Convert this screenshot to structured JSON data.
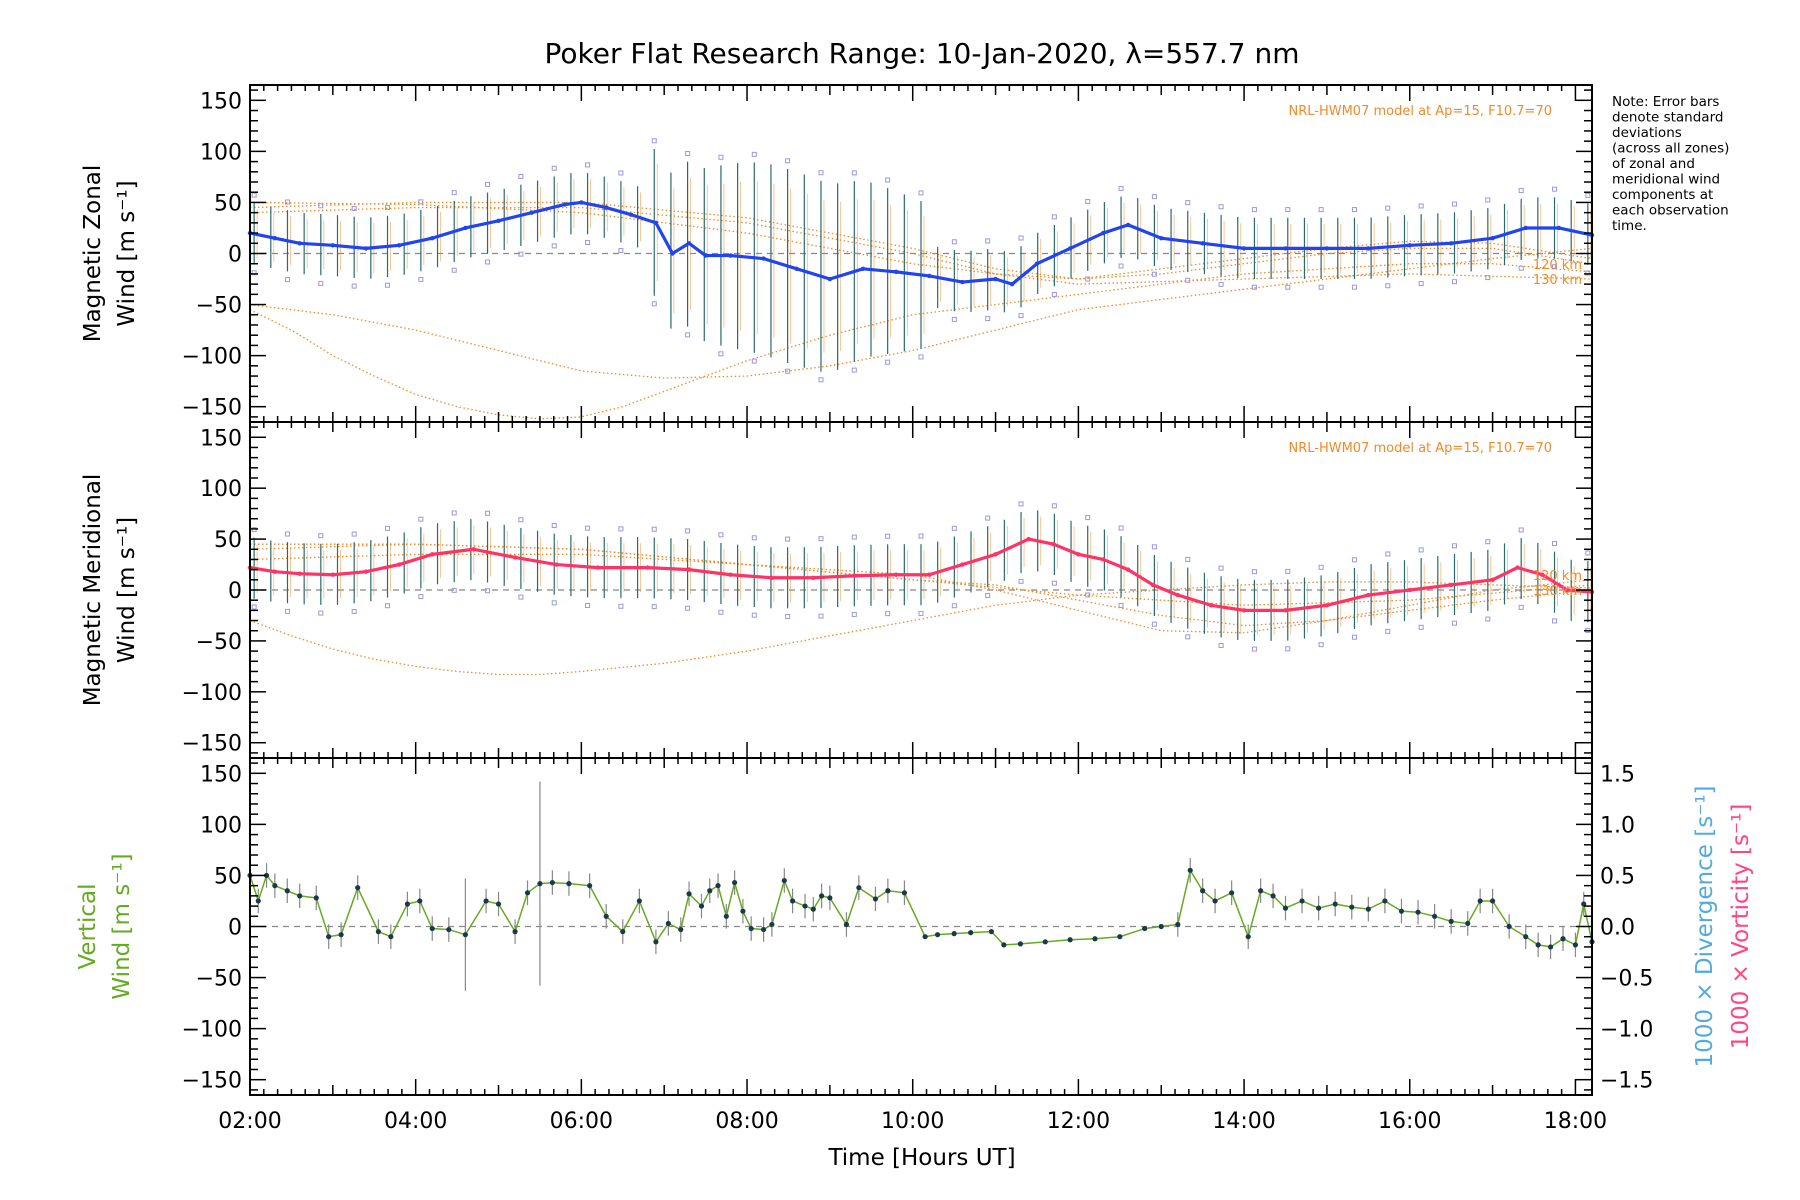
{
  "title": "Poker Flat Research Range: 10-Jan-2020, λ=557.7 nm",
  "note": [
    "Note: Error bars",
    "denote standard",
    "deviations",
    "(across all zones)",
    "of zonal and",
    "meridional wind",
    "components at",
    "each observation",
    "time."
  ],
  "colors": {
    "zonal": "#2244ee",
    "zonal_light": "#4aa8e8",
    "meridional": "#ff3366",
    "vertical": "#66aa22",
    "divergence": "#55aadd",
    "vorticity": "#ff4488",
    "model": "#f08a2a",
    "zone_box": "#9999dd",
    "errbar": "#2a6a6a"
  },
  "chart_data": [
    {
      "type": "line",
      "panel": "zonal",
      "ylabel": "Magnetic Zonal",
      "ylabel2": "Wind [m s⁻¹]",
      "model_label": "NRL-HWM07 model at Ap=15, F10.7=70",
      "model_curve_labels": [
        "120 km",
        "130 km"
      ],
      "xlim": [
        2,
        18.2
      ],
      "ylim": [
        -165,
        165
      ],
      "yticks": [
        150,
        100,
        50,
        0,
        -50,
        -100,
        -150
      ],
      "series": [
        {
          "x": [
            2.0,
            2.3,
            2.6,
            3.0,
            3.4,
            3.8,
            4.2,
            4.6,
            5.0,
            5.4,
            5.8,
            6.0,
            6.3,
            6.6,
            6.9,
            7.1,
            7.3,
            7.5,
            7.8,
            8.2,
            8.6,
            9.0,
            9.4,
            9.8,
            10.2,
            10.6,
            11.0,
            11.2,
            11.5,
            11.9,
            12.3,
            12.6,
            13.0,
            13.5,
            14.0,
            14.5,
            15.0,
            15.5,
            16.0,
            16.5,
            17.0,
            17.4,
            17.8,
            18.2
          ],
          "y": [
            20,
            15,
            10,
            8,
            5,
            8,
            15,
            25,
            32,
            40,
            48,
            50,
            45,
            38,
            30,
            0,
            10,
            -2,
            -2,
            -5,
            -15,
            -25,
            -15,
            -18,
            -22,
            -28,
            -25,
            -30,
            -10,
            5,
            20,
            28,
            15,
            10,
            5,
            5,
            5,
            5,
            8,
            10,
            15,
            25,
            25,
            18
          ]
        }
      ],
      "model_curves": [
        {
          "x": [
            2,
            3,
            4,
            5,
            5.5,
            6,
            7,
            8,
            9,
            10,
            11,
            12,
            13,
            14,
            15,
            16,
            17,
            18.2
          ],
          "y": [
            -50,
            -60,
            -75,
            -95,
            -105,
            -115,
            -122,
            -120,
            -110,
            -95,
            -75,
            -55,
            -45,
            -35,
            -25,
            -15,
            -5,
            5
          ]
        },
        {
          "x": [
            2,
            2.5,
            3,
            3.5,
            4,
            4.5,
            5,
            5.5,
            6,
            6.5,
            7,
            8,
            9,
            10,
            11,
            12,
            13,
            14,
            15,
            16,
            17,
            18.2
          ],
          "y": [
            -55,
            -75,
            -100,
            -120,
            -138,
            -150,
            -158,
            -162,
            -160,
            -150,
            -135,
            -105,
            -80,
            -60,
            -50,
            -40,
            -30,
            -20,
            -15,
            -10,
            -10,
            -18
          ]
        },
        {
          "x": [
            2,
            4,
            6,
            8,
            10,
            11,
            12,
            13,
            14,
            15,
            16,
            17,
            18.2
          ],
          "y": [
            40,
            45,
            45,
            30,
            0,
            -20,
            -25,
            -15,
            -5,
            5,
            12,
            10,
            -5
          ]
        },
        {
          "x": [
            2,
            4,
            6,
            8,
            10,
            11,
            12,
            13,
            14,
            15,
            16,
            17,
            18.2
          ],
          "y": [
            45,
            50,
            50,
            35,
            5,
            -15,
            -25,
            -20,
            -10,
            0,
            5,
            5,
            -10
          ]
        },
        {
          "x": [
            2,
            4,
            6,
            8,
            10,
            12,
            14,
            16,
            18.2
          ],
          "y": [
            50,
            48,
            40,
            20,
            -10,
            -30,
            -25,
            -20,
            -25
          ]
        }
      ]
    },
    {
      "type": "line",
      "panel": "meridional",
      "ylabel": "Magnetic Meridional",
      "ylabel2": "Wind [m s⁻¹]",
      "model_label": "NRL-HWM07 model at Ap=15, F10.7=70",
      "model_curve_labels": [
        "120 km",
        "130 km"
      ],
      "xlim": [
        2,
        18.2
      ],
      "ylim": [
        -165,
        165
      ],
      "yticks": [
        150,
        100,
        50,
        0,
        -50,
        -100,
        -150
      ],
      "series": [
        {
          "x": [
            2.0,
            2.3,
            2.6,
            3.0,
            3.4,
            3.8,
            4.2,
            4.7,
            5.2,
            5.7,
            6.2,
            6.8,
            7.3,
            7.8,
            8.3,
            8.8,
            9.3,
            9.8,
            10.2,
            10.6,
            11.0,
            11.4,
            11.7,
            12.0,
            12.3,
            12.6,
            12.9,
            13.2,
            13.6,
            14.0,
            14.5,
            15.0,
            15.5,
            16.0,
            16.5,
            17.0,
            17.3,
            17.6,
            17.9,
            18.2
          ],
          "y": [
            22,
            18,
            16,
            15,
            18,
            25,
            35,
            40,
            32,
            25,
            22,
            22,
            20,
            15,
            12,
            12,
            14,
            15,
            15,
            25,
            35,
            50,
            45,
            35,
            30,
            20,
            5,
            -5,
            -15,
            -20,
            -20,
            -15,
            -5,
            0,
            5,
            10,
            22,
            15,
            0,
            -2
          ]
        }
      ],
      "model_curves": [
        {
          "x": [
            2,
            2.5,
            3,
            3.5,
            4,
            4.5,
            5,
            5.5,
            6,
            7,
            8,
            9,
            10,
            11,
            12,
            13,
            14,
            15,
            16,
            17,
            18.2
          ],
          "y": [
            -30,
            -45,
            -58,
            -68,
            -75,
            -80,
            -83,
            -83,
            -80,
            -72,
            -60,
            -45,
            -30,
            -15,
            -5,
            0,
            5,
            8,
            8,
            5,
            2
          ]
        },
        {
          "x": [
            2,
            4,
            6,
            8,
            10,
            11,
            12,
            13,
            14,
            15,
            16,
            17,
            18.2
          ],
          "y": [
            40,
            45,
            40,
            25,
            10,
            5,
            -10,
            -25,
            -35,
            -30,
            -20,
            -10,
            0
          ]
        },
        {
          "x": [
            2,
            4,
            6,
            8,
            10,
            11,
            12,
            13,
            14,
            15,
            16,
            17,
            18.2
          ],
          "y": [
            30,
            35,
            35,
            25,
            15,
            0,
            -20,
            -40,
            -42,
            -30,
            -15,
            0,
            10
          ]
        },
        {
          "x": [
            2,
            4,
            6,
            8,
            10,
            12,
            14,
            16,
            18.2
          ],
          "y": [
            45,
            45,
            40,
            25,
            10,
            -5,
            -15,
            -10,
            5
          ]
        }
      ]
    },
    {
      "type": "line",
      "panel": "vertical",
      "ylabel": "Vertical",
      "ylabel2": "Wind [m s⁻¹]",
      "xlabel": "Time [Hours UT]",
      "xlim": [
        2,
        18.2
      ],
      "ylim": [
        -165,
        165
      ],
      "yticks": [
        150,
        100,
        50,
        0,
        -50,
        -100,
        -150
      ],
      "y2label_divergence": "1000 × Divergence [s⁻¹]",
      "y2label_vorticity": "1000 × Vorticity [s⁻¹]",
      "y2ticks": [
        "1.5",
        "1.0",
        "0.5",
        "0.0",
        "−0.5",
        "−1.0",
        "−1.5"
      ],
      "y2lim": [
        -1.5,
        1.5
      ],
      "xticks": [
        "02:00",
        "04:00",
        "06:00",
        "08:00",
        "10:00",
        "12:00",
        "14:00",
        "16:00",
        "18:00"
      ],
      "xtick_values": [
        2,
        4,
        6,
        8,
        10,
        12,
        14,
        16,
        18
      ],
      "series": [
        {
          "x": [
            2.0,
            2.1,
            2.2,
            2.3,
            2.45,
            2.6,
            2.8,
            2.95,
            3.1,
            3.3,
            3.55,
            3.7,
            3.9,
            4.05,
            4.2,
            4.4,
            4.6,
            4.85,
            5.0,
            5.2,
            5.35,
            5.5,
            5.65,
            5.85,
            6.1,
            6.3,
            6.5,
            6.7,
            6.9,
            7.05,
            7.2,
            7.3,
            7.45,
            7.55,
            7.65,
            7.75,
            7.85,
            7.95,
            8.05,
            8.2,
            8.3,
            8.45,
            8.55,
            8.7,
            8.8,
            8.9,
            9.0,
            9.2,
            9.35,
            9.55,
            9.7,
            9.9,
            10.15,
            10.3,
            10.5,
            10.7,
            10.95,
            11.1,
            11.3,
            11.6,
            11.9,
            12.2,
            12.5,
            12.8,
            13.0,
            13.2,
            13.35,
            13.5,
            13.65,
            13.85,
            14.05,
            14.2,
            14.35,
            14.5,
            14.7,
            14.9,
            15.1,
            15.3,
            15.5,
            15.7,
            15.9,
            16.1,
            16.3,
            16.5,
            16.7,
            16.85,
            17.0,
            17.2,
            17.4,
            17.55,
            17.7,
            17.85,
            18.0,
            18.1,
            18.2
          ],
          "y": [
            50,
            25,
            50,
            40,
            35,
            30,
            28,
            -10,
            -8,
            38,
            -5,
            -10,
            22,
            25,
            -2,
            -3,
            -8,
            25,
            22,
            -5,
            33,
            42,
            43,
            42,
            40,
            10,
            -5,
            25,
            -15,
            3,
            -3,
            32,
            20,
            35,
            40,
            10,
            43,
            15,
            -2,
            -3,
            2,
            45,
            25,
            20,
            17,
            30,
            28,
            2,
            38,
            27,
            35,
            33,
            -10,
            -8,
            -7,
            -6,
            -5,
            -18,
            -17,
            -15,
            -13,
            -12,
            -10,
            -2,
            0,
            2,
            55,
            35,
            25,
            33,
            -10,
            35,
            30,
            18,
            25,
            18,
            22,
            19,
            17,
            25,
            15,
            14,
            10,
            5,
            3,
            25,
            25,
            0,
            -10,
            -18,
            -20,
            -12,
            -18,
            22,
            -15
          ]
        }
      ]
    }
  ]
}
